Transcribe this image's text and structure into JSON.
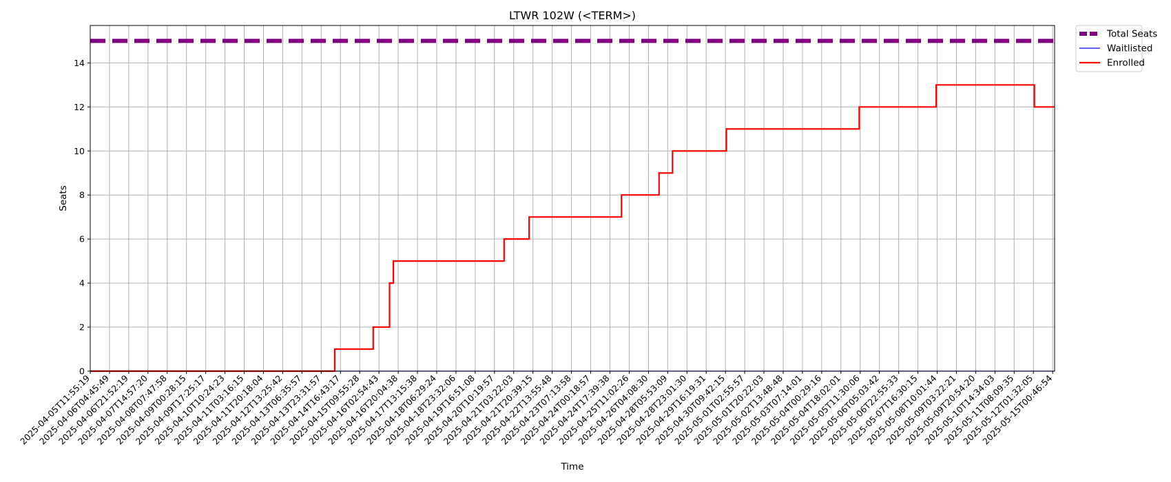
{
  "chart_data": {
    "type": "line",
    "title": "LTWR 102W (<TERM>)",
    "xlabel": "Time",
    "ylabel": "Seats",
    "ylim": [
      0,
      15.7
    ],
    "yticks": [
      0,
      2,
      4,
      6,
      8,
      10,
      12,
      14
    ],
    "grid": true,
    "legend_position": "outside-top-right",
    "categories": [
      "2025-04-05T11:55:19",
      "2025-04-06T04:45:49",
      "2025-04-06T21:52:19",
      "2025-04-07T14:57:20",
      "2025-04-08T07:47:58",
      "2025-04-09T00:28:15",
      "2025-04-09T17:25:17",
      "2025-04-10T10:24:23",
      "2025-04-11T03:16:15",
      "2025-04-11T20:18:04",
      "2025-04-12T13:25:42",
      "2025-04-13T06:35:57",
      "2025-04-13T23:31:57",
      "2025-04-14T16:43:17",
      "2025-04-15T09:55:28",
      "2025-04-16T02:54:43",
      "2025-04-16T20:04:38",
      "2025-04-17T13:15:38",
      "2025-04-18T06:29:24",
      "2025-04-18T23:32:06",
      "2025-04-19T16:51:08",
      "2025-04-20T10:19:57",
      "2025-04-21T03:22:03",
      "2025-04-21T20:39:15",
      "2025-04-22T13:55:48",
      "2025-04-23T07:13:58",
      "2025-04-24T00:18:57",
      "2025-04-24T17:39:38",
      "2025-04-25T11:02:26",
      "2025-04-26T04:08:30",
      "2025-04-28T05:53:09",
      "2025-04-28T23:01:30",
      "2025-04-29T16:19:31",
      "2025-04-30T09:42:15",
      "2025-05-01T02:55:57",
      "2025-05-01T20:22:03",
      "2025-05-02T13:48:48",
      "2025-05-03T07:14:01",
      "2025-05-04T00:29:16",
      "2025-05-04T18:02:01",
      "2025-05-05T11:30:06",
      "2025-05-06T05:03:42",
      "2025-05-06T22:55:33",
      "2025-05-07T16:30:15",
      "2025-05-08T10:01:44",
      "2025-05-09T03:22:21",
      "2025-05-09T20:54:20",
      "2025-05-10T14:34:03",
      "2025-05-11T08:09:35",
      "2025-05-12T01:32:05",
      "2025-05-15T00:46:54"
    ],
    "x_end": 50.1,
    "series": [
      {
        "name": "Total Seats",
        "color": "#800080",
        "style": "dashed",
        "points": [
          [
            0,
            15
          ],
          [
            50.1,
            15
          ]
        ]
      },
      {
        "name": "Waitlisted",
        "color": "#0000ff",
        "style": "solid",
        "points": [
          [
            0,
            0
          ],
          [
            50.1,
            0
          ]
        ]
      },
      {
        "name": "Enrolled",
        "color": "#ff0000",
        "style": "step",
        "points": [
          [
            0,
            0
          ],
          [
            12.7,
            1
          ],
          [
            14.7,
            2
          ],
          [
            15.55,
            4
          ],
          [
            15.75,
            5
          ],
          [
            21.5,
            6
          ],
          [
            22.8,
            7
          ],
          [
            27.6,
            8
          ],
          [
            29.55,
            9
          ],
          [
            30.25,
            10
          ],
          [
            33.05,
            11
          ],
          [
            39.95,
            12
          ],
          [
            43.95,
            13
          ],
          [
            49.05,
            12
          ],
          [
            50.1,
            12
          ]
        ]
      }
    ]
  }
}
